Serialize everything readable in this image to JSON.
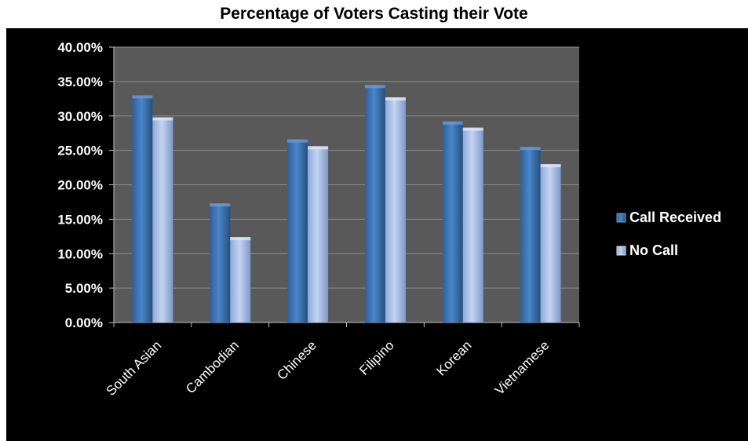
{
  "chart_data": {
    "type": "bar",
    "title": "Percentage of Voters Casting their Vote",
    "xlabel": "",
    "ylabel": "",
    "categories": [
      "South Asian",
      "Cambodian",
      "Chinese",
      "Filipino",
      "Korean",
      "Vietnamese"
    ],
    "series": [
      {
        "name": "Call Received",
        "values": [
          0.33,
          0.173,
          0.266,
          0.345,
          0.292,
          0.255
        ],
        "color": "#3f78b8"
      },
      {
        "name": "No Call",
        "values": [
          0.298,
          0.124,
          0.256,
          0.327,
          0.283,
          0.23
        ],
        "color": "#a6bde6"
      }
    ],
    "ylim": [
      0,
      0.4
    ],
    "y_ticks": [
      "0.00%",
      "5.00%",
      "10.00%",
      "15.00%",
      "20.00%",
      "25.00%",
      "30.00%",
      "35.00%",
      "40.00%"
    ],
    "grid": true,
    "legend_position": "right",
    "plot_background": "#595959",
    "background": "#000000"
  }
}
